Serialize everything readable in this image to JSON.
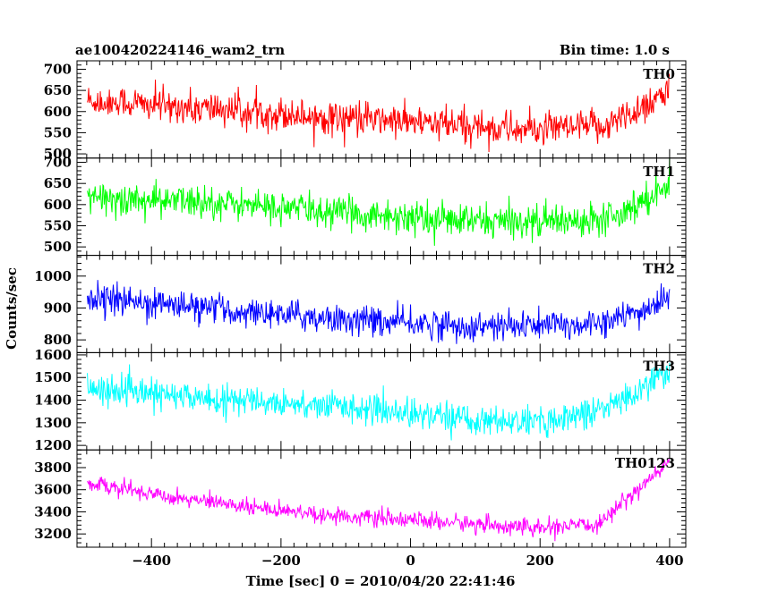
{
  "header": {
    "title": "ae100420224146_wam2_trn",
    "bin_time": "Bin time: 1.0 s"
  },
  "chart_data": {
    "type": "line",
    "xlabel": "Time [sec] 0 = 2010/04/20 22:41:46",
    "ylabel": "Counts/sec",
    "xlim": [
      -515,
      425
    ],
    "xticks": [
      -400,
      -200,
      0,
      200,
      400
    ],
    "x_start": -499,
    "x_end": 400,
    "x_step": 1,
    "panels": [
      {
        "name": "TH0",
        "color": "#ff0000",
        "ylim": [
          490,
          720
        ],
        "yticks": [
          500,
          550,
          600,
          650,
          700
        ],
        "trend": [
          [
            -500,
            625
          ],
          [
            -300,
            605
          ],
          [
            -100,
            585
          ],
          [
            100,
            565
          ],
          [
            200,
            555
          ],
          [
            300,
            565
          ],
          [
            350,
            605
          ],
          [
            400,
            650
          ]
        ],
        "noise": 35
      },
      {
        "name": "TH1",
        "color": "#00ff00",
        "ylim": [
          480,
          710
        ],
        "yticks": [
          500,
          550,
          600,
          650,
          700
        ],
        "trend": [
          [
            -500,
            615
          ],
          [
            -300,
            605
          ],
          [
            -100,
            580
          ],
          [
            100,
            560
          ],
          [
            250,
            560
          ],
          [
            330,
            585
          ],
          [
            370,
            620
          ],
          [
            400,
            650
          ]
        ],
        "noise": 34
      },
      {
        "name": "TH2",
        "color": "#0000ff",
        "ylim": [
          760,
          1065
        ],
        "yticks": [
          800,
          900,
          1000
        ],
        "trend": [
          [
            -500,
            935
          ],
          [
            -300,
            895
          ],
          [
            -100,
            865
          ],
          [
            100,
            840
          ],
          [
            250,
            845
          ],
          [
            330,
            870
          ],
          [
            370,
            900
          ],
          [
            400,
            940
          ]
        ],
        "noise": 40
      },
      {
        "name": "TH3",
        "color": "#00ffff",
        "ylim": [
          1180,
          1610
        ],
        "yticks": [
          1200,
          1300,
          1400,
          1500,
          1600
        ],
        "trend": [
          [
            -500,
            1450
          ],
          [
            -300,
            1405
          ],
          [
            -100,
            1370
          ],
          [
            100,
            1315
          ],
          [
            200,
            1300
          ],
          [
            300,
            1360
          ],
          [
            350,
            1440
          ],
          [
            400,
            1530
          ]
        ],
        "noise": 55
      },
      {
        "name": "TH0123",
        "color": "#ff00ff",
        "ylim": [
          3080,
          3960
        ],
        "yticks": [
          3200,
          3400,
          3600,
          3800
        ],
        "trend": [
          [
            -500,
            3660
          ],
          [
            -300,
            3480
          ],
          [
            -100,
            3360
          ],
          [
            100,
            3290
          ],
          [
            200,
            3250
          ],
          [
            290,
            3280
          ],
          [
            330,
            3500
          ],
          [
            370,
            3700
          ],
          [
            400,
            3850
          ]
        ],
        "noise": 65
      }
    ]
  }
}
